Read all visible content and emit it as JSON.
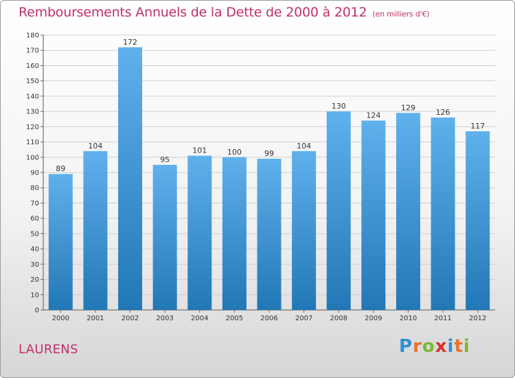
{
  "title": "Remboursements Annuels de la Dette de 2000 à 2012",
  "subtitle": "(en milliers d'€)",
  "city": "LAURENS",
  "logo": {
    "letters": [
      "P",
      "r",
      "o",
      "x",
      "i",
      "t",
      "i"
    ],
    "colors": [
      "#2e8fd6",
      "#e8742a",
      "#7cb82f",
      "#d9312b",
      "#2e8fd6",
      "#e8742a",
      "#7cb82f"
    ]
  },
  "colors": {
    "bar_top": "#5fb1ec",
    "bar_bottom": "#2277b6",
    "grid": "#cfcfcf",
    "title": "#c0306a"
  },
  "chart_data": {
    "type": "bar",
    "categories": [
      "2000",
      "2001",
      "2002",
      "2003",
      "2004",
      "2005",
      "2006",
      "2007",
      "2008",
      "2009",
      "2010",
      "2011",
      "2012"
    ],
    "values": [
      89,
      104,
      172,
      95,
      101,
      100,
      99,
      104,
      130,
      124,
      129,
      126,
      117
    ],
    "ylim": [
      0,
      180
    ],
    "yticks": [
      0,
      10,
      20,
      30,
      40,
      50,
      60,
      70,
      80,
      90,
      100,
      110,
      120,
      130,
      140,
      150,
      160,
      170,
      180
    ],
    "grid": true
  }
}
